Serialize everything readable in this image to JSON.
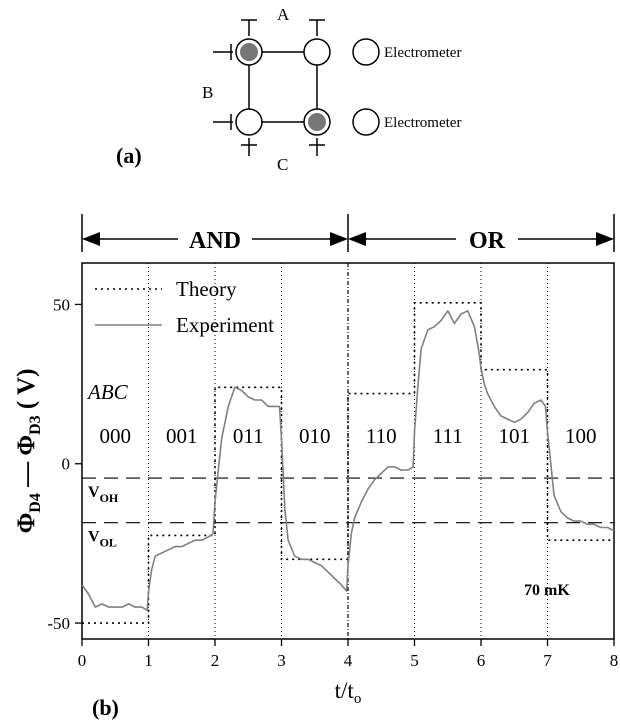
{
  "schematic": {
    "panel_label": "(a)",
    "node_label_a": "A",
    "node_label_b": "B",
    "node_label_c": "C",
    "electrometer_1": "Electrometer",
    "electrometer_2": "Electrometer",
    "dot_color_filled": "#777777",
    "dot_color_empty": "#ffffff"
  },
  "plot": {
    "panel_label": "(b)",
    "region_and": "AND",
    "region_or": "OR",
    "ylabel": "Φ_D4 — Φ_D3 ( V)",
    "xlabel": "t/t_o",
    "abc_header": "ABC",
    "voh_label": "V_OH",
    "vol_label": "V_OL",
    "temperature": "70 mK"
  },
  "chart_data": {
    "type": "line",
    "xlim": [
      0,
      8
    ],
    "ylim": [
      -55,
      63
    ],
    "x_ticks": [
      0,
      1,
      2,
      3,
      4,
      5,
      6,
      7,
      8
    ],
    "y_ticks": [
      -50,
      0,
      50
    ],
    "y_tick_labels": [
      "-50",
      "0",
      "50"
    ],
    "legend": {
      "position": "top-left",
      "entries": [
        "Theory",
        "Experiment"
      ]
    },
    "states": [
      "000",
      "001",
      "011",
      "010",
      "110",
      "111",
      "101",
      "100"
    ],
    "thresholds": [
      {
        "label": "V_OH",
        "y": -4.5
      },
      {
        "label": "V_OL",
        "y": -18.5
      }
    ],
    "series": [
      {
        "name": "Theory",
        "style": "dotted",
        "x": [
          0,
          1,
          1,
          2,
          2,
          3,
          3,
          4,
          4,
          5,
          5,
          6,
          6,
          7,
          7,
          8
        ],
        "y": [
          -50,
          -50,
          -22.5,
          -22.5,
          24,
          24,
          -30,
          -30,
          22,
          22,
          50.5,
          50.5,
          29.5,
          29.5,
          -24,
          -24
        ]
      },
      {
        "name": "Experiment",
        "style": "solid",
        "color": "#808080",
        "x": [
          0,
          0.1,
          0.2,
          0.3,
          0.4,
          0.5,
          0.6,
          0.7,
          0.8,
          0.9,
          0.98,
          1.0,
          1.05,
          1.1,
          1.2,
          1.3,
          1.4,
          1.5,
          1.6,
          1.7,
          1.8,
          1.9,
          1.97,
          2.0,
          2.05,
          2.1,
          2.2,
          2.3,
          2.4,
          2.5,
          2.6,
          2.7,
          2.8,
          2.9,
          2.97,
          3.0,
          3.05,
          3.1,
          3.2,
          3.3,
          3.4,
          3.5,
          3.6,
          3.7,
          3.8,
          3.9,
          3.98,
          4.0,
          4.05,
          4.1,
          4.2,
          4.3,
          4.4,
          4.5,
          4.6,
          4.7,
          4.8,
          4.9,
          4.98,
          5.0,
          5.05,
          5.1,
          5.2,
          5.3,
          5.4,
          5.5,
          5.6,
          5.7,
          5.8,
          5.9,
          5.97,
          6.0,
          6.05,
          6.1,
          6.2,
          6.3,
          6.4,
          6.5,
          6.6,
          6.7,
          6.8,
          6.9,
          6.97,
          7.0,
          7.05,
          7.1,
          7.2,
          7.3,
          7.4,
          7.5,
          7.6,
          7.7,
          7.8,
          7.9,
          8.0
        ],
        "y": [
          -38,
          -41,
          -45,
          -44,
          -45,
          -45,
          -45,
          -44,
          -45,
          -45,
          -46,
          -40,
          -33,
          -29,
          -28,
          -27,
          -26,
          -26,
          -25,
          -24,
          -24,
          -23,
          -22,
          -12,
          -2,
          8,
          18,
          24,
          23,
          21,
          20,
          20,
          18,
          18,
          18,
          8,
          -14,
          -24,
          -29,
          -30,
          -30,
          -31,
          -32,
          -34,
          -36,
          -38,
          -40,
          -32,
          -22,
          -17,
          -12,
          -8,
          -5,
          -3,
          -1,
          -1,
          -2,
          -2,
          -1,
          10,
          24,
          36,
          42,
          43,
          45,
          48,
          44,
          47,
          48,
          43,
          35,
          30,
          25,
          22,
          18,
          15,
          14,
          13,
          14,
          16,
          19,
          20,
          18,
          10,
          0,
          -10,
          -15,
          -17,
          -18,
          -18,
          -19,
          -19,
          -20,
          -20,
          -21
        ]
      }
    ]
  }
}
